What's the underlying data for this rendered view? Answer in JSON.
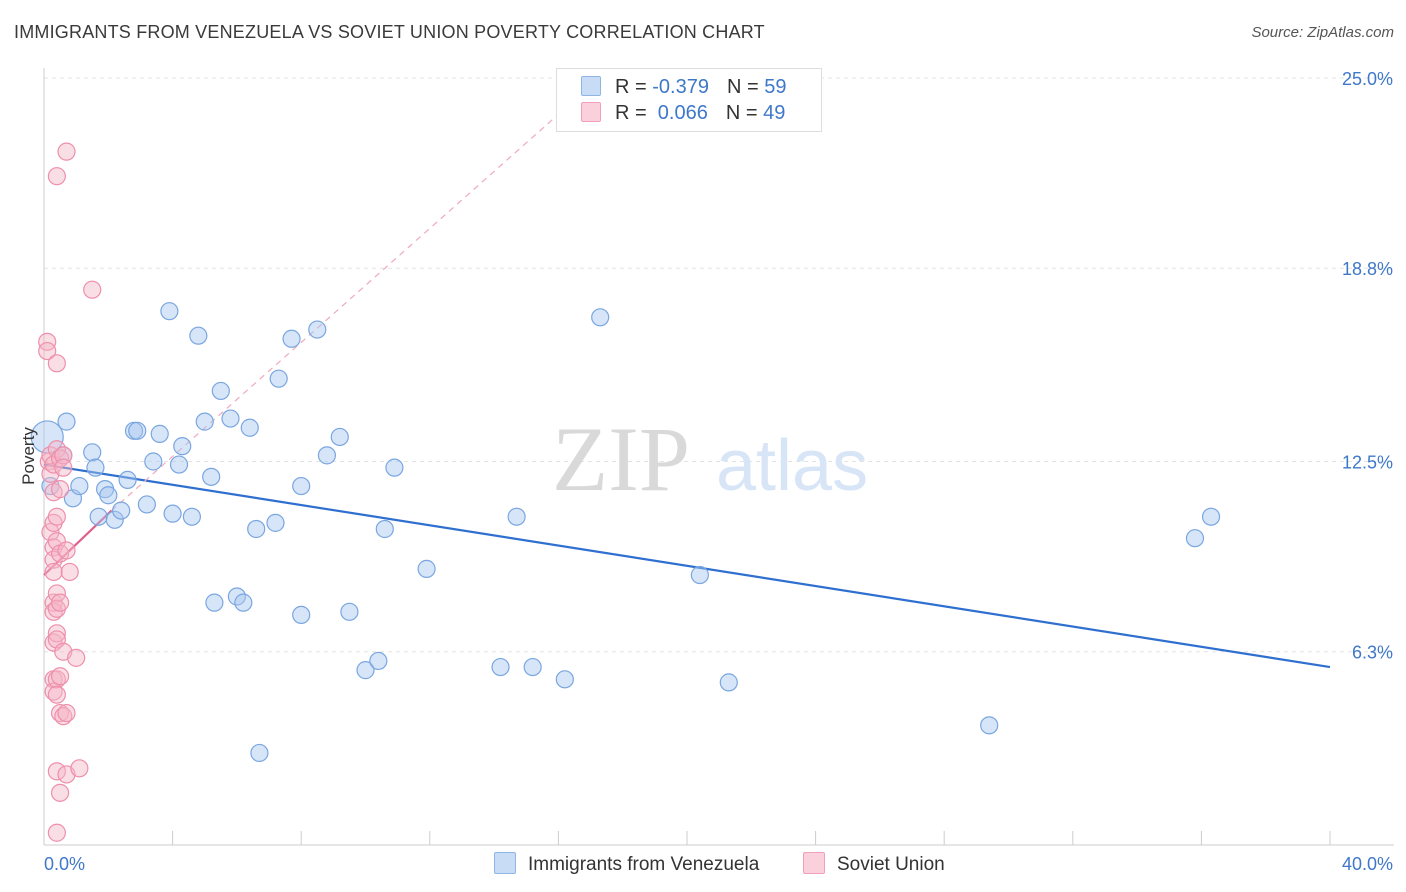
{
  "header": {
    "title": "IMMIGRANTS FROM VENEZUELA VS SOVIET UNION POVERTY CORRELATION CHART",
    "source": "Source: ZipAtlas.com"
  },
  "watermark": {
    "zip": "ZIP",
    "atlas": "atlas"
  },
  "legend_top": {
    "rows": [
      {
        "r_label": "R = ",
        "r_value": "-0.379",
        "n_label": "N = ",
        "n_value": "59",
        "color": "#a7c6ef"
      },
      {
        "r_label": "R = ",
        "r_value": " 0.066",
        "n_label": "N = ",
        "n_value": "49",
        "color": "#f5b6c8"
      }
    ]
  },
  "legend_bottom": {
    "items": [
      {
        "label": "Immigrants from Venezuela",
        "color": "#a7c6ef"
      },
      {
        "label": "Soviet Union",
        "color": "#f5b6c8"
      }
    ]
  },
  "chart_data": {
    "type": "scatter",
    "ylabel": "Poverty",
    "xlim": [
      0,
      40
    ],
    "ylim": [
      0,
      25
    ],
    "x_tick_labels": [
      "0.0%",
      "40.0%"
    ],
    "y_ticks": [
      6.3,
      12.5,
      18.8,
      25.0
    ],
    "y_tick_labels": [
      "6.3%",
      "12.5%",
      "18.8%",
      "25.0%"
    ],
    "grid": "horizontal dashed",
    "legend_placement": "top-center and bottom",
    "series": [
      {
        "name": "Immigrants from Venezuela",
        "color": "#a7c6ef",
        "stroke": "#7aa6e0",
        "trend": {
          "x": [
            0,
            40
          ],
          "y": [
            12.4,
            5.8
          ],
          "color": "#2f6fd0"
        },
        "points": [
          [
            0.1,
            13.3
          ],
          [
            0.2,
            11.7
          ],
          [
            0.6,
            12.7
          ],
          [
            0.7,
            13.8
          ],
          [
            0.9,
            11.3
          ],
          [
            1.1,
            11.7
          ],
          [
            1.5,
            12.8
          ],
          [
            1.6,
            12.3
          ],
          [
            1.7,
            10.7
          ],
          [
            1.9,
            11.6
          ],
          [
            2.0,
            11.4
          ],
          [
            2.2,
            10.6
          ],
          [
            2.4,
            10.9
          ],
          [
            2.6,
            11.9
          ],
          [
            2.8,
            13.5
          ],
          [
            2.9,
            13.5
          ],
          [
            3.2,
            11.1
          ],
          [
            3.4,
            12.5
          ],
          [
            3.6,
            13.4
          ],
          [
            3.9,
            17.4
          ],
          [
            4.0,
            10.8
          ],
          [
            4.2,
            12.4
          ],
          [
            4.3,
            13.0
          ],
          [
            4.6,
            10.7
          ],
          [
            4.8,
            16.6
          ],
          [
            5.0,
            13.8
          ],
          [
            5.2,
            12.0
          ],
          [
            5.3,
            7.9
          ],
          [
            5.5,
            14.8
          ],
          [
            5.8,
            13.9
          ],
          [
            6.0,
            8.1
          ],
          [
            6.2,
            7.9
          ],
          [
            6.4,
            13.6
          ],
          [
            6.6,
            10.3
          ],
          [
            6.7,
            3.0
          ],
          [
            7.2,
            10.5
          ],
          [
            7.3,
            15.2
          ],
          [
            7.7,
            16.5
          ],
          [
            8.0,
            7.5
          ],
          [
            8.0,
            11.7
          ],
          [
            8.5,
            16.8
          ],
          [
            8.8,
            12.7
          ],
          [
            9.2,
            13.3
          ],
          [
            9.5,
            7.6
          ],
          [
            10.0,
            5.7
          ],
          [
            10.4,
            6.0
          ],
          [
            10.6,
            10.3
          ],
          [
            10.9,
            12.3
          ],
          [
            11.9,
            9.0
          ],
          [
            14.2,
            5.8
          ],
          [
            14.7,
            10.7
          ],
          [
            15.2,
            5.8
          ],
          [
            16.2,
            5.4
          ],
          [
            17.3,
            17.2
          ],
          [
            20.4,
            8.8
          ],
          [
            21.3,
            5.3
          ],
          [
            29.4,
            3.9
          ],
          [
            35.8,
            10.0
          ],
          [
            36.3,
            10.7
          ]
        ]
      },
      {
        "name": "Soviet Union",
        "color": "#f5b6c8",
        "stroke": "#ee8fab",
        "trend": {
          "x": [
            0,
            2.1
          ],
          "y": [
            8.8,
            10.9
          ],
          "color": "#e0608d"
        },
        "trend_extension": {
          "x": [
            2.1,
            16.2
          ],
          "y": [
            10.9,
            24.0
          ]
        },
        "points": [
          [
            0.1,
            16.4
          ],
          [
            0.1,
            16.1
          ],
          [
            0.15,
            12.5
          ],
          [
            0.2,
            12.7
          ],
          [
            0.2,
            12.1
          ],
          [
            0.2,
            10.2
          ],
          [
            0.3,
            12.4
          ],
          [
            0.3,
            11.5
          ],
          [
            0.3,
            10.5
          ],
          [
            0.3,
            9.7
          ],
          [
            0.3,
            9.3
          ],
          [
            0.3,
            8.9
          ],
          [
            0.3,
            7.9
          ],
          [
            0.3,
            7.6
          ],
          [
            0.3,
            6.6
          ],
          [
            0.3,
            5.4
          ],
          [
            0.3,
            5.0
          ],
          [
            0.4,
            21.8
          ],
          [
            0.4,
            15.7
          ],
          [
            0.4,
            12.9
          ],
          [
            0.4,
            10.7
          ],
          [
            0.4,
            9.9
          ],
          [
            0.4,
            8.2
          ],
          [
            0.4,
            7.7
          ],
          [
            0.4,
            6.9
          ],
          [
            0.4,
            6.7
          ],
          [
            0.4,
            5.4
          ],
          [
            0.4,
            4.9
          ],
          [
            0.4,
            2.4
          ],
          [
            0.4,
            0.4
          ],
          [
            0.5,
            12.6
          ],
          [
            0.5,
            11.6
          ],
          [
            0.5,
            9.5
          ],
          [
            0.5,
            7.9
          ],
          [
            0.5,
            5.5
          ],
          [
            0.5,
            4.3
          ],
          [
            0.5,
            1.7
          ],
          [
            0.6,
            12.7
          ],
          [
            0.6,
            12.3
          ],
          [
            0.6,
            6.3
          ],
          [
            0.6,
            4.2
          ],
          [
            0.7,
            22.6
          ],
          [
            0.7,
            9.6
          ],
          [
            0.7,
            4.3
          ],
          [
            0.7,
            2.3
          ],
          [
            0.8,
            8.9
          ],
          [
            1.0,
            6.1
          ],
          [
            1.1,
            2.5
          ],
          [
            1.5,
            18.1
          ]
        ]
      }
    ]
  }
}
